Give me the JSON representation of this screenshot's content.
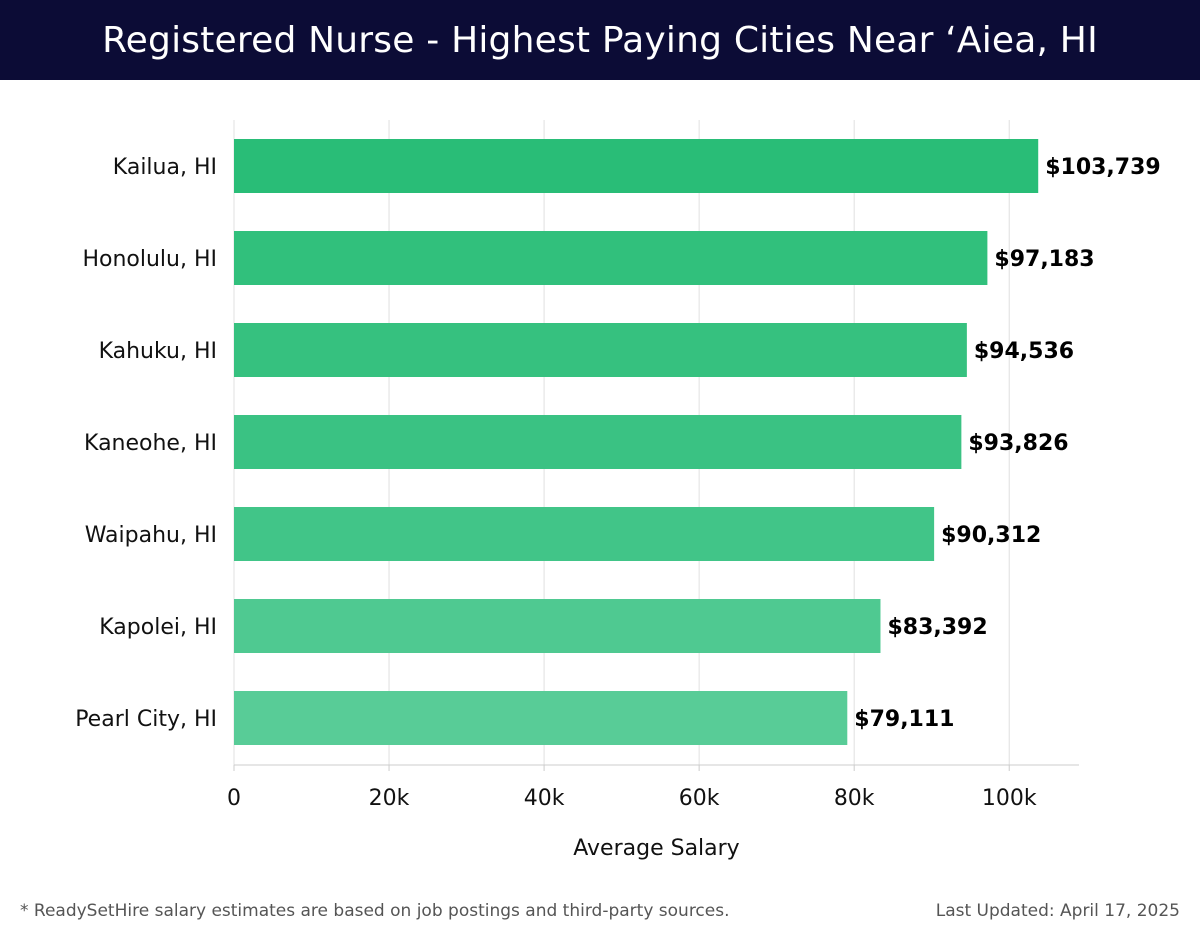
{
  "header": {
    "title": "Registered Nurse - Highest Paying Cities Near ‘Aiea, HI",
    "background": "#0c0c36"
  },
  "chart_data": {
    "type": "bar",
    "orientation": "horizontal",
    "title": "Registered Nurse - Highest Paying Cities Near ‘Aiea, HI",
    "xlabel": "Average Salary",
    "ylabel": "",
    "categories": [
      "Kailua, HI",
      "Honolulu, HI",
      "Kahuku, HI",
      "Kaneohe, HI",
      "Waipahu, HI",
      "Kapolei, HI",
      "Pearl City, HI"
    ],
    "values": [
      103739,
      97183,
      94536,
      93826,
      90312,
      83392,
      79111
    ],
    "value_labels": [
      "$103,739",
      "$97,183",
      "$94,536",
      "$93,826",
      "$90,312",
      "$83,392",
      "$79,111"
    ],
    "xlim": [
      0,
      109000
    ],
    "xticks": [
      0,
      20000,
      40000,
      60000,
      80000,
      100000
    ],
    "xtick_labels": [
      "0",
      "20k",
      "40k",
      "60k",
      "80k",
      "100k"
    ],
    "grid": "vertical",
    "bar_colors": [
      "#29bd77",
      "#31c07c",
      "#36c17f",
      "#3ac283",
      "#41c588",
      "#4fc991",
      "#58cc97"
    ]
  },
  "footer": {
    "note": "* ReadySetHire salary estimates are based on job postings and third-party sources.",
    "updated": "Last Updated: April 17, 2025"
  }
}
